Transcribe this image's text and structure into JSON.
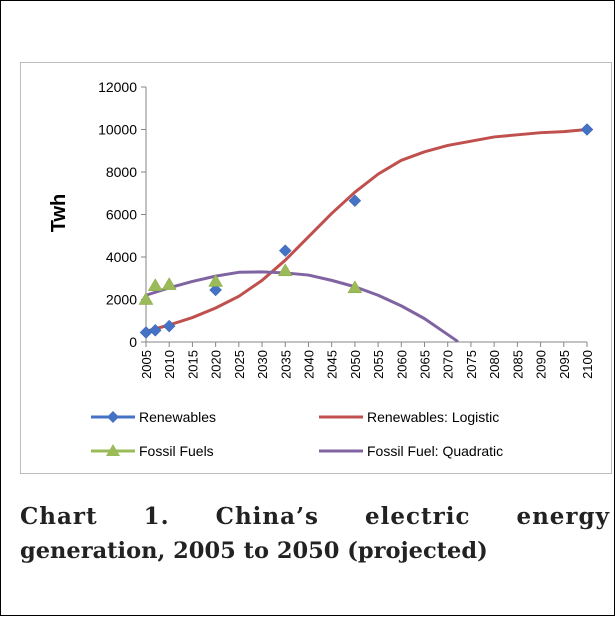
{
  "chart_data": {
    "type": "scatter",
    "ylabel": "Twh",
    "xlabel": "",
    "ylim": [
      0,
      12000
    ],
    "y_ticks": [
      "0",
      "2000",
      "4000",
      "6000",
      "8000",
      "10000",
      "12000"
    ],
    "x_ticks": [
      "2005",
      "2010",
      "2015",
      "2020",
      "2025",
      "2030",
      "2035",
      "2040",
      "2045",
      "2050",
      "2055",
      "2060",
      "2065",
      "2070",
      "2075",
      "2080",
      "2085",
      "2090",
      "2095",
      "2100"
    ],
    "xlim": [
      2005,
      2100
    ],
    "grid": false,
    "legend_position": "bottom",
    "series": [
      {
        "name": "Renewables",
        "kind": "markers",
        "marker": "diamond",
        "color": "#4472c4",
        "x": [
          2005,
          2007,
          2010,
          2020,
          2035,
          2050,
          2100
        ],
        "y": [
          450,
          550,
          750,
          2450,
          4300,
          6650,
          10000
        ]
      },
      {
        "name": "Renewables: Logistic",
        "kind": "line",
        "color": "#c0504d",
        "x": [
          2005,
          2010,
          2015,
          2020,
          2025,
          2030,
          2035,
          2040,
          2045,
          2050,
          2055,
          2060,
          2065,
          2070,
          2075,
          2080,
          2085,
          2090,
          2095,
          2100
        ],
        "y": [
          500,
          800,
          1150,
          1600,
          2150,
          2900,
          3850,
          4950,
          6050,
          7050,
          7900,
          8550,
          8950,
          9250,
          9450,
          9650,
          9750,
          9850,
          9900,
          10000
        ]
      },
      {
        "name": "Fossil Fuels",
        "kind": "markers",
        "marker": "triangle",
        "color": "#9bbb59",
        "x": [
          2005,
          2007,
          2010,
          2020,
          2035,
          2050
        ],
        "y": [
          2000,
          2650,
          2700,
          2850,
          3350,
          2550
        ]
      },
      {
        "name": "Fossil Fuel: Quadratic",
        "kind": "line",
        "color": "#8064a2",
        "x": [
          2005,
          2010,
          2015,
          2020,
          2025,
          2030,
          2035,
          2040,
          2045,
          2050,
          2055,
          2060,
          2065,
          2070,
          2072
        ],
        "y": [
          2200,
          2550,
          2850,
          3100,
          3280,
          3300,
          3250,
          3150,
          2900,
          2600,
          2200,
          1700,
          1100,
          350,
          50
        ]
      }
    ]
  },
  "caption": {
    "line1": "Chart 1. China’s electric energy",
    "line2": "generation, 2005 to 2050 (projected)"
  }
}
